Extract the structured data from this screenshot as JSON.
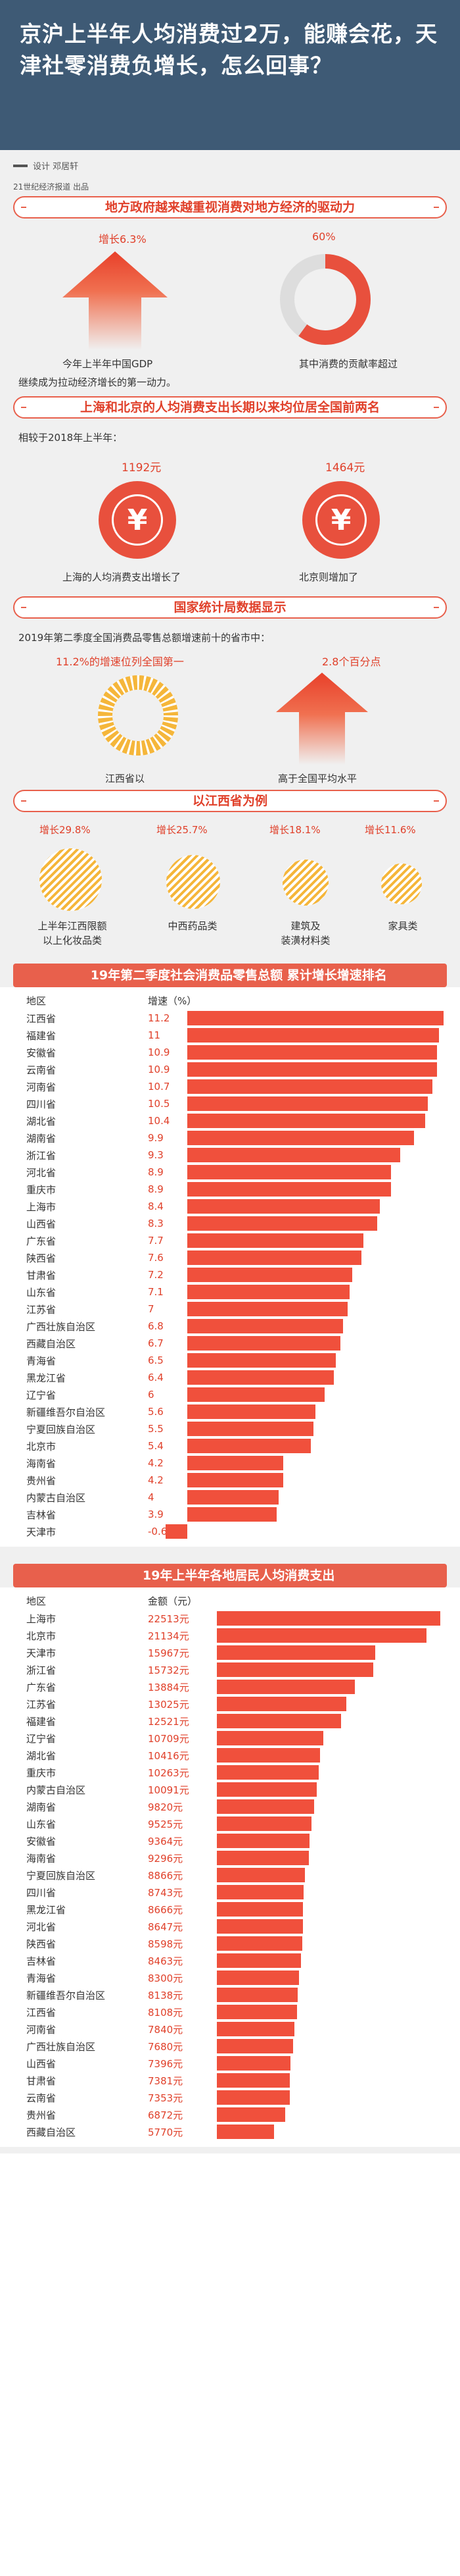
{
  "header": {
    "title": "京沪上半年人均消费过2万，能赚会花，天津社零消费负增长，怎么回事？"
  },
  "credits": {
    "design": "设计 邓居轩",
    "source": "21世纪经济报道 出品"
  },
  "section1": {
    "title": "地方政府越来越重视消费对地方经济的驱动力",
    "gdp_growth": "增长6.3%",
    "consumption_share": "60%",
    "consumption_share_value": 60,
    "cap_left": "今年上半年中国GDP",
    "cap_right": "其中消费的贡献率超过",
    "cap_bottom": "继续成为拉动经济增长的第一动力。"
  },
  "section2": {
    "title": "上海和北京的人均消费支出长期以来均位居全国前两名",
    "intro": "相较于2018年上半年：",
    "shanghai_value": "1192元",
    "beijing_value": "1464元",
    "cap_left": "上海的人均消费支出增长了",
    "cap_right": "北京则增加了"
  },
  "section3": {
    "title": "国家统计局数据显示",
    "intro": "2019年第二季度全国消费品零售总额增速前十的省市中：",
    "v_left": "11.2%的增速位列全国第一",
    "v_right": "2.8个百分点",
    "cap_left": "江西省以",
    "cap_right": "高于全国平均水平"
  },
  "section4": {
    "title": "以江西省为例",
    "items": [
      {
        "growth": "增长29.8%",
        "label": "上半年江西限额\n以上化妆品类"
      },
      {
        "growth": "增长25.7%",
        "label": "中西药品类"
      },
      {
        "growth": "增长18.1%",
        "label": "建筑及\n装潢材料类"
      },
      {
        "growth": "增长11.6%",
        "label": "家具类"
      }
    ]
  },
  "ranking1": {
    "title": "2019年第二季度社会消费品零售总额 累计增长增速排名",
    "col_region": "地区",
    "col_value": "增速（%）"
  },
  "ranking2": {
    "title": "2019年上半年各地居民人均消费支出",
    "col_region": "地区",
    "col_value": "金额（元）"
  },
  "chart_data": [
    {
      "type": "bar",
      "title": "2019年第二季度社会消费品零售总额 累计增长增速排名",
      "xlabel": "地区",
      "ylabel": "增速（%）",
      "categories": [
        "江西省",
        "福建省",
        "安徽省",
        "云南省",
        "河南省",
        "四川省",
        "湖北省",
        "湖南省",
        "浙江省",
        "河北省",
        "重庆市",
        "上海市",
        "山西省",
        "广东省",
        "陕西省",
        "甘肃省",
        "山东省",
        "江苏省",
        "广西壮族自治区",
        "西藏自治区",
        "青海省",
        "黑龙江省",
        "辽宁省",
        "新疆维吾尔自治区",
        "宁夏回族自治区",
        "北京市",
        "海南省",
        "贵州省",
        "内蒙古自治区",
        "吉林省",
        "天津市"
      ],
      "values": [
        11.2,
        11,
        10.9,
        10.9,
        10.7,
        10.5,
        10.4,
        9.9,
        9.3,
        8.9,
        8.9,
        8.4,
        8.3,
        7.7,
        7.6,
        7.2,
        7.1,
        7,
        6.8,
        6.7,
        6.5,
        6.4,
        6,
        5.6,
        5.5,
        5.4,
        4.2,
        4.2,
        4,
        3.9,
        -0.6
      ],
      "labels": [
        "11.2",
        "11",
        "10.9",
        "10.9",
        "10.7",
        "10.5",
        "10.4",
        "9.9",
        "9.3",
        "8.9",
        "8.9",
        "8.4",
        "8.3",
        "7.7",
        "7.6",
        "7.2",
        "7.1",
        "7",
        "6.8",
        "6.7",
        "6.5",
        "6.4",
        "6",
        "5.6",
        "5.5",
        "5.4",
        "4.2",
        "4.2",
        "4",
        "3.9",
        "-0.6"
      ],
      "bar_color": "#f0503c"
    },
    {
      "type": "bar",
      "title": "2019年上半年各地居民人均消费支出",
      "xlabel": "地区",
      "ylabel": "金额（元）",
      "categories": [
        "上海市",
        "北京市",
        "天津市",
        "浙江省",
        "广东省",
        "江苏省",
        "福建省",
        "辽宁省",
        "湖北省",
        "重庆市",
        "内蒙古自治区",
        "湖南省",
        "山东省",
        "安徽省",
        "海南省",
        "宁夏回族自治区",
        "四川省",
        "黑龙江省",
        "河北省",
        "陕西省",
        "吉林省",
        "青海省",
        "新疆维吾尔自治区",
        "江西省",
        "河南省",
        "广西壮族自治区",
        "山西省",
        "甘肃省",
        "云南省",
        "贵州省",
        "西藏自治区"
      ],
      "values": [
        22513,
        21134,
        15967,
        15732,
        13884,
        13025,
        12521,
        10709,
        10416,
        10263,
        10091,
        9820,
        9525,
        9364,
        9296,
        8866,
        8743,
        8666,
        8647,
        8598,
        8463,
        8300,
        8138,
        8108,
        7840,
        7680,
        7396,
        7381,
        7353,
        6872,
        5770
      ],
      "labels": [
        "22513元",
        "21134元",
        "15967元",
        "15732元",
        "13884元",
        "13025元",
        "12521元",
        "10709元",
        "10416元",
        "10263元",
        "10091元",
        "9820元",
        "9525元",
        "9364元",
        "9296元",
        "8866元",
        "8743元",
        "8666元",
        "8647元",
        "8598元",
        "8463元",
        "8300元",
        "8138元",
        "8108元",
        "7840元",
        "7680元",
        "7396元",
        "7381元",
        "7353元",
        "6872元",
        "5770元"
      ],
      "bar_color": "#f0503c"
    }
  ]
}
